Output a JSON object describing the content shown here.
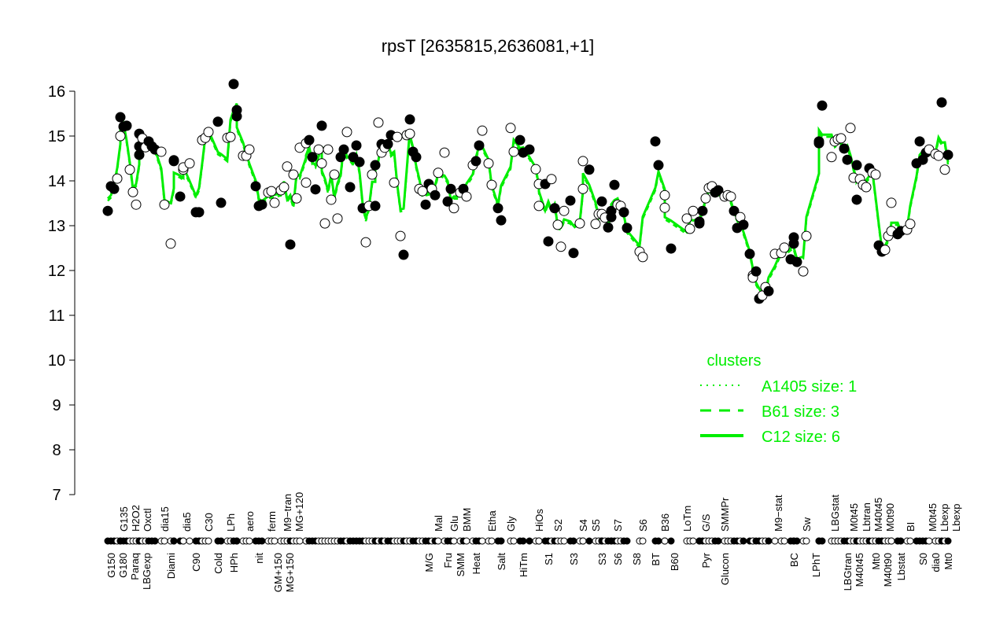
{
  "chart_data": {
    "type": "scatter",
    "title": "rpsT [2635815,2636081,+1]",
    "xlabel": "",
    "ylabel": "",
    "ylim": [
      7,
      16
    ],
    "yticks": [
      "7",
      "8",
      "9",
      "10",
      "11",
      "12",
      "13",
      "14",
      "15",
      "16"
    ],
    "grid": false,
    "legend": {
      "title": "clusters",
      "placement": "right-middle",
      "entries": [
        {
          "label": "A1405 size: 1",
          "style": "dotted"
        },
        {
          "label": "B61 size: 3",
          "style": "dashed"
        },
        {
          "label": "C12 size: 6",
          "style": "solid"
        }
      ]
    },
    "colors": {
      "points": "#000000",
      "clusters": "#00ee00"
    },
    "points_format": "[sample_index, log_expression, filled(1)/open(0)]",
    "points": [
      [
        1,
        13.33,
        1
      ],
      [
        2,
        13.88,
        1
      ],
      [
        3,
        13.82,
        1
      ],
      [
        4,
        14.05,
        0
      ],
      [
        5,
        15.0,
        0
      ],
      [
        5,
        15.42,
        1
      ],
      [
        6,
        15.21,
        1
      ],
      [
        7,
        15.23,
        1
      ],
      [
        8,
        14.25,
        0
      ],
      [
        9,
        13.75,
        0
      ],
      [
        10,
        13.47,
        0
      ],
      [
        11,
        14.58,
        1
      ],
      [
        11,
        15.05,
        1
      ],
      [
        11,
        14.77,
        1
      ],
      [
        12,
        14.95,
        0
      ],
      [
        13,
        14.75,
        0
      ],
      [
        14,
        14.88,
        1
      ],
      [
        15,
        14.77,
        1
      ],
      [
        16,
        14.7,
        1
      ],
      [
        18,
        14.65,
        0
      ],
      [
        19,
        13.47,
        0
      ],
      [
        21,
        12.6,
        0
      ],
      [
        22,
        14.44,
        1
      ],
      [
        22,
        14.46,
        1
      ],
      [
        24,
        13.65,
        1
      ],
      [
        25,
        14.25,
        0
      ],
      [
        25,
        14.3,
        0
      ],
      [
        27,
        14.39,
        0
      ],
      [
        29,
        13.3,
        1
      ],
      [
        30,
        13.3,
        1
      ],
      [
        31,
        14.91,
        0
      ],
      [
        32,
        14.96,
        0
      ],
      [
        33,
        15.09,
        0
      ],
      [
        36,
        15.32,
        1
      ],
      [
        37,
        13.51,
        1
      ],
      [
        39,
        14.96,
        0
      ],
      [
        40,
        14.98,
        0
      ],
      [
        41,
        16.16,
        1
      ],
      [
        42,
        15.58,
        1
      ],
      [
        42,
        15.44,
        1
      ],
      [
        44,
        14.56,
        0
      ],
      [
        45,
        14.56,
        0
      ],
      [
        46,
        14.7,
        0
      ],
      [
        48,
        13.88,
        1
      ],
      [
        49,
        13.44,
        1
      ],
      [
        50,
        13.47,
        1
      ],
      [
        52,
        13.74,
        0
      ],
      [
        53,
        13.77,
        0
      ],
      [
        54,
        13.51,
        0
      ],
      [
        56,
        13.79,
        0
      ],
      [
        57,
        13.86,
        0
      ],
      [
        58,
        14.32,
        0
      ],
      [
        59,
        12.58,
        1
      ],
      [
        60,
        14.14,
        0
      ],
      [
        61,
        13.61,
        0
      ],
      [
        62,
        14.74,
        0
      ],
      [
        64,
        13.96,
        0
      ],
      [
        64,
        14.84,
        0
      ],
      [
        65,
        14.91,
        1
      ],
      [
        66,
        14.53,
        1
      ],
      [
        67,
        13.81,
        1
      ],
      [
        68,
        14.7,
        0
      ],
      [
        69,
        15.23,
        1
      ],
      [
        69,
        14.39,
        0
      ],
      [
        70,
        13.05,
        0
      ],
      [
        71,
        14.7,
        0
      ],
      [
        72,
        13.58,
        0
      ],
      [
        73,
        14.14,
        0
      ],
      [
        74,
        13.16,
        0
      ],
      [
        75,
        14.53,
        1
      ],
      [
        76,
        14.7,
        1
      ],
      [
        77,
        15.09,
        0
      ],
      [
        78,
        13.86,
        1
      ],
      [
        79,
        14.53,
        1
      ],
      [
        80,
        14.79,
        1
      ],
      [
        81,
        14.42,
        1
      ],
      [
        82,
        13.39,
        1
      ],
      [
        83,
        12.63,
        0
      ],
      [
        84,
        13.44,
        0
      ],
      [
        85,
        14.14,
        0
      ],
      [
        86,
        14.35,
        1
      ],
      [
        86,
        13.44,
        1
      ],
      [
        87,
        15.3,
        0
      ],
      [
        88,
        14.63,
        0
      ],
      [
        88,
        14.82,
        1
      ],
      [
        89,
        14.74,
        0
      ],
      [
        90,
        14.82,
        1
      ],
      [
        91,
        15.02,
        1
      ],
      [
        92,
        13.96,
        0
      ],
      [
        93,
        14.98,
        0
      ],
      [
        94,
        12.77,
        0
      ],
      [
        95,
        12.35,
        1
      ],
      [
        96,
        15.02,
        0
      ],
      [
        97,
        15.37,
        1
      ],
      [
        97,
        15.05,
        0
      ],
      [
        98,
        14.65,
        1
      ],
      [
        99,
        14.53,
        1
      ],
      [
        100,
        13.82,
        0
      ],
      [
        101,
        13.77,
        0
      ],
      [
        102,
        13.47,
        1
      ],
      [
        103,
        13.93,
        1
      ],
      [
        104,
        13.82,
        0
      ],
      [
        105,
        13.68,
        1
      ],
      [
        106,
        14.18,
        0
      ],
      [
        108,
        14.63,
        0
      ],
      [
        109,
        13.54,
        1
      ],
      [
        110,
        13.82,
        1
      ],
      [
        111,
        13.39,
        0
      ],
      [
        113,
        13.74,
        0
      ],
      [
        114,
        13.82,
        1
      ],
      [
        115,
        13.65,
        0
      ],
      [
        117,
        14.35,
        0
      ],
      [
        118,
        14.44,
        1
      ],
      [
        119,
        14.79,
        1
      ],
      [
        120,
        15.12,
        0
      ],
      [
        122,
        14.39,
        0
      ],
      [
        123,
        13.91,
        0
      ],
      [
        125,
        13.39,
        1
      ],
      [
        126,
        13.12,
        1
      ],
      [
        129,
        15.18,
        0
      ],
      [
        130,
        14.65,
        0
      ],
      [
        132,
        14.91,
        1
      ],
      [
        133,
        14.63,
        1
      ],
      [
        135,
        14.7,
        1
      ],
      [
        137,
        14.26,
        0
      ],
      [
        138,
        13.93,
        0
      ],
      [
        138,
        13.44,
        0
      ],
      [
        140,
        13.93,
        1
      ],
      [
        141,
        12.65,
        1
      ],
      [
        142,
        14.04,
        0
      ],
      [
        143,
        13.39,
        1
      ],
      [
        144,
        13.02,
        0
      ],
      [
        145,
        12.53,
        0
      ],
      [
        146,
        13.33,
        0
      ],
      [
        148,
        13.56,
        1
      ],
      [
        149,
        12.39,
        1
      ],
      [
        151,
        13.05,
        0
      ],
      [
        152,
        13.82,
        0
      ],
      [
        152,
        14.44,
        0
      ],
      [
        154,
        14.25,
        1
      ],
      [
        156,
        13.04,
        0
      ],
      [
        157,
        13.26,
        0
      ],
      [
        158,
        13.26,
        0
      ],
      [
        158,
        13.54,
        1
      ],
      [
        159,
        13.18,
        0
      ],
      [
        160,
        12.96,
        1
      ],
      [
        161,
        13.19,
        1
      ],
      [
        161,
        13.33,
        1
      ],
      [
        162,
        13.91,
        1
      ],
      [
        163,
        13.47,
        0
      ],
      [
        164,
        13.44,
        0
      ],
      [
        165,
        13.3,
        1
      ],
      [
        166,
        12.95,
        1
      ],
      [
        170,
        12.42,
        0
      ],
      [
        171,
        12.3,
        0
      ],
      [
        175,
        14.88,
        1
      ],
      [
        176,
        14.35,
        1
      ],
      [
        178,
        13.4,
        0
      ],
      [
        178,
        13.68,
        0
      ],
      [
        180,
        12.49,
        1
      ],
      [
        185,
        13.16,
        0
      ],
      [
        186,
        12.93,
        0
      ],
      [
        187,
        13.33,
        0
      ],
      [
        189,
        13.09,
        1
      ],
      [
        189,
        13.05,
        1
      ],
      [
        190,
        13.33,
        1
      ],
      [
        191,
        13.61,
        0
      ],
      [
        192,
        13.84,
        0
      ],
      [
        193,
        13.88,
        0
      ],
      [
        194,
        13.74,
        1
      ],
      [
        195,
        13.79,
        1
      ],
      [
        197,
        13.65,
        0
      ],
      [
        198,
        13.68,
        0
      ],
      [
        199,
        13.65,
        0
      ],
      [
        200,
        13.33,
        1
      ],
      [
        201,
        12.95,
        1
      ],
      [
        202,
        13.19,
        0
      ],
      [
        203,
        13.02,
        1
      ],
      [
        205,
        12.37,
        1
      ],
      [
        206,
        11.89,
        0
      ],
      [
        206,
        11.84,
        0
      ],
      [
        207,
        11.98,
        1
      ],
      [
        208,
        11.37,
        1
      ],
      [
        209,
        11.44,
        0
      ],
      [
        210,
        11.63,
        0
      ],
      [
        211,
        11.54,
        1
      ],
      [
        213,
        12.37,
        0
      ],
      [
        215,
        12.39,
        0
      ],
      [
        216,
        12.51,
        0
      ],
      [
        218,
        12.25,
        1
      ],
      [
        219,
        12.74,
        1
      ],
      [
        219,
        12.6,
        1
      ],
      [
        220,
        12.19,
        1
      ],
      [
        222,
        11.98,
        0
      ],
      [
        223,
        12.77,
        0
      ],
      [
        227,
        14.84,
        1
      ],
      [
        227,
        14.88,
        1
      ],
      [
        228,
        15.68,
        1
      ],
      [
        231,
        14.53,
        0
      ],
      [
        232,
        14.88,
        0
      ],
      [
        233,
        14.93,
        0
      ],
      [
        234,
        14.95,
        0
      ],
      [
        235,
        14.72,
        1
      ],
      [
        236,
        14.47,
        1
      ],
      [
        237,
        15.18,
        0
      ],
      [
        238,
        14.07,
        0
      ],
      [
        239,
        13.58,
        1
      ],
      [
        239,
        14.35,
        1
      ],
      [
        240,
        14.04,
        0
      ],
      [
        241,
        13.91,
        0
      ],
      [
        242,
        13.86,
        0
      ],
      [
        243,
        14.28,
        1
      ],
      [
        244,
        14.18,
        0
      ],
      [
        245,
        14.14,
        0
      ],
      [
        246,
        12.56,
        1
      ],
      [
        247,
        12.42,
        1
      ],
      [
        248,
        12.46,
        0
      ],
      [
        249,
        12.77,
        0
      ],
      [
        250,
        12.88,
        0
      ],
      [
        250,
        13.51,
        0
      ],
      [
        252,
        12.81,
        1
      ],
      [
        253,
        12.88,
        1
      ],
      [
        255,
        12.91,
        0
      ],
      [
        256,
        13.04,
        0
      ],
      [
        258,
        14.39,
        1
      ],
      [
        259,
        14.88,
        1
      ],
      [
        260,
        14.47,
        1
      ],
      [
        261,
        14.63,
        1
      ],
      [
        262,
        14.7,
        0
      ],
      [
        264,
        14.6,
        0
      ],
      [
        265,
        14.56,
        0
      ],
      [
        266,
        15.75,
        1
      ],
      [
        267,
        14.25,
        0
      ],
      [
        268,
        14.58,
        1
      ]
    ],
    "x_labels_lower": [
      [
        "G150",
        2
      ],
      [
        "G180",
        5
      ],
      [
        "Paraq",
        9
      ],
      [
        "LBGexp",
        13
      ],
      [
        "Diami",
        21
      ],
      [
        "C90",
        29
      ],
      [
        "Cold",
        36
      ],
      [
        "HPh",
        41
      ],
      [
        "nit",
        49
      ],
      [
        "GM+150",
        55
      ],
      [
        "MG+150",
        57
      ],
      [
        "M/G",
        103
      ],
      [
        "Fru",
        109
      ],
      [
        "SMM",
        113
      ],
      [
        "Heat",
        118
      ],
      [
        "Salt",
        126
      ],
      [
        "HiTm",
        133
      ],
      [
        "S1",
        141
      ],
      [
        "S3",
        149
      ],
      [
        "S3",
        158
      ],
      [
        "S6",
        163
      ],
      [
        "S8",
        169
      ],
      [
        "BT",
        175
      ],
      [
        "B60",
        181
      ],
      [
        "Pyr",
        191
      ],
      [
        "Glucon",
        197
      ],
      [
        "BC",
        219
      ],
      [
        "LPhT",
        226
      ],
      [
        "LBGtran",
        236
      ],
      [
        "M40t45",
        239
      ],
      [
        "Mt0",
        245
      ],
      [
        "M40t90",
        247
      ],
      [
        "Lbstat",
        253
      ],
      [
        "S0",
        260
      ],
      [
        "dia0",
        264
      ],
      [
        "Mt0",
        268
      ]
    ],
    "x_labels_upper": [
      [
        "G135",
        6
      ],
      [
        "H2O2",
        9
      ],
      [
        "Oxctl",
        13
      ],
      [
        "dia15",
        19
      ],
      [
        "dia5",
        26
      ],
      [
        "C30",
        33
      ],
      [
        "LPh",
        40
      ],
      [
        "aero",
        46
      ],
      [
        "ferm",
        53
      ],
      [
        "M9−tran",
        58
      ],
      [
        "MG+120",
        61
      ],
      [
        "Mal",
        106
      ],
      [
        "Glu",
        111
      ],
      [
        "BMM",
        115
      ],
      [
        "Etha",
        123
      ],
      [
        "Gly",
        129
      ],
      [
        "HiOs",
        138
      ],
      [
        "S2",
        144
      ],
      [
        "S4",
        152
      ],
      [
        "S5",
        156
      ],
      [
        "S7",
        163
      ],
      [
        "S6",
        171
      ],
      [
        "B36",
        178
      ],
      [
        "LoTm",
        185
      ],
      [
        "G/S",
        191
      ],
      [
        "SMMPr",
        197
      ],
      [
        "M9−stat",
        214
      ],
      [
        "Sw",
        223
      ],
      [
        "LBGstat",
        232
      ],
      [
        "M0t45",
        238
      ],
      [
        "Lbtran",
        242
      ],
      [
        "M40t45",
        244
      ],
      [
        "M0t90",
        249
      ],
      [
        "BI",
        256
      ],
      [
        "M0t45",
        263
      ],
      [
        "Lbexp",
        265
      ],
      [
        "Lbexp",
        267
      ]
    ]
  }
}
